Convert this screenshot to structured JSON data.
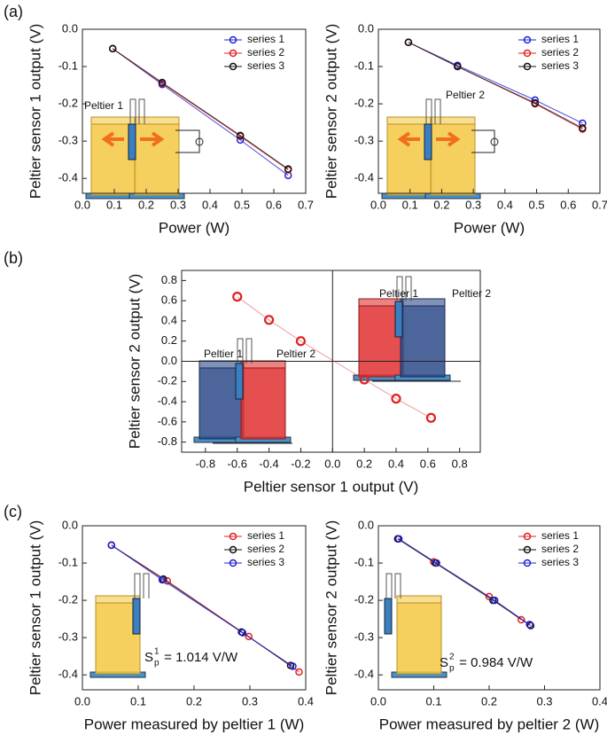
{
  "panel_labels": [
    "(a)",
    "(b)",
    "(c)"
  ],
  "chart_data": [
    {
      "type": "line",
      "xlabel": "Power (W)",
      "ylabel": "Peltier sensor 1 output (V)",
      "xlim": [
        0,
        0.7
      ],
      "xticks": [
        {
          "value": 0,
          "label": "0.0"
        },
        0.1,
        0.2,
        0.3,
        0.4,
        0.5,
        0.6,
        0.7
      ],
      "ylim": [
        -0.44,
        0
      ],
      "yticks": [
        {
          "value": 0,
          "label": "0.0"
        },
        -0.1,
        -0.2,
        -0.3,
        -0.4
      ],
      "legend": "upper right",
      "annotations": [
        "Peltier 1"
      ],
      "series": [
        {
          "name": "series 1",
          "color": "#1f1fd6",
          "x": [
            0.095,
            0.25,
            0.495,
            0.645
          ],
          "values": [
            -0.052,
            -0.148,
            -0.297,
            -0.392
          ]
        },
        {
          "name": "series 2",
          "color": "#e02020",
          "x": [
            0.095,
            0.25,
            0.495,
            0.645
          ],
          "values": [
            -0.052,
            -0.145,
            -0.287,
            -0.377
          ]
        },
        {
          "name": "series 3",
          "color": "#111111",
          "x": [
            0.095,
            0.25,
            0.495,
            0.645
          ],
          "values": [
            -0.052,
            -0.143,
            -0.285,
            -0.375
          ]
        }
      ]
    },
    {
      "type": "line",
      "xlabel": "Power (W)",
      "ylabel": "Peltier sensor 2 output (V)",
      "xlim": [
        0,
        0.7
      ],
      "xticks": [
        {
          "value": 0,
          "label": "0.0"
        },
        0.1,
        0.2,
        0.3,
        0.4,
        0.5,
        0.6,
        0.7
      ],
      "ylim": [
        -0.44,
        0
      ],
      "yticks": [
        {
          "value": 0,
          "label": "0.0"
        },
        -0.1,
        -0.2,
        -0.3,
        -0.4
      ],
      "legend": "upper right",
      "annotations": [
        "Peltier 2"
      ],
      "series": [
        {
          "name": "series 1",
          "color": "#1f1fd6",
          "x": [
            0.095,
            0.25,
            0.495,
            0.645
          ],
          "values": [
            -0.035,
            -0.097,
            -0.19,
            -0.252
          ]
        },
        {
          "name": "series 2",
          "color": "#e02020",
          "x": [
            0.095,
            0.25,
            0.495,
            0.645
          ],
          "values": [
            -0.035,
            -0.1,
            -0.2,
            -0.268
          ]
        },
        {
          "name": "series 3",
          "color": "#111111",
          "x": [
            0.095,
            0.25,
            0.495,
            0.645
          ],
          "values": [
            -0.035,
            -0.1,
            -0.198,
            -0.265
          ]
        }
      ]
    },
    {
      "type": "line",
      "xlabel": "Peltier sensor 1 output (V)",
      "ylabel": "Peltier sensor 2 output (V)",
      "xlim": [
        -0.95,
        0.93
      ],
      "xticks": [
        -0.8,
        -0.6,
        -0.4,
        -0.2,
        {
          "value": 0,
          "label": "0.0"
        },
        0.2,
        0.4,
        0.6,
        0.8
      ],
      "ylim": [
        -0.9,
        0.9
      ],
      "yticks": [
        -0.8,
        -0.6,
        -0.4,
        -0.2,
        {
          "value": 0,
          "label": "0.0"
        },
        0.2,
        0.4,
        0.6,
        0.8
      ],
      "zero_lines": true,
      "annotations": [
        "Peltier 1",
        "Peltier 2",
        "Peltier 1",
        "Peltier 2"
      ],
      "color": "#e02020",
      "x": [
        -0.6,
        -0.4,
        -0.2,
        0.2,
        0.4,
        0.62
      ],
      "values": [
        0.64,
        0.41,
        0.2,
        -0.18,
        -0.37,
        -0.56
      ]
    },
    {
      "type": "line",
      "xlabel": "Power measured by peltier 1 (W)",
      "ylabel": "Peltier sensor 1 output (V)",
      "xlim": [
        0,
        0.4
      ],
      "xticks": [
        {
          "value": 0,
          "label": "0.0"
        },
        0.1,
        0.2,
        0.3,
        0.4
      ],
      "ylim": [
        -0.44,
        0
      ],
      "yticks": [
        {
          "value": 0,
          "label": "0.0"
        },
        -0.1,
        -0.2,
        -0.3,
        -0.4
      ],
      "legend": "upper right",
      "annotation": {
        "symbol": "S",
        "superscript": "1",
        "subscript": "p",
        "text": " = 1.014 V/W"
      },
      "series": [
        {
          "name": "series 1",
          "color": "#e02020",
          "x": [
            0.052,
            0.152,
            0.298,
            0.388
          ],
          "values": [
            -0.052,
            -0.148,
            -0.297,
            -0.392
          ]
        },
        {
          "name": "series 2",
          "color": "#111111",
          "x": [
            0.052,
            0.145,
            0.285,
            0.373
          ],
          "values": [
            -0.052,
            -0.143,
            -0.285,
            -0.375
          ]
        },
        {
          "name": "series 3",
          "color": "#1f1fd6",
          "x": [
            0.052,
            0.143,
            0.287,
            0.377
          ],
          "values": [
            -0.052,
            -0.145,
            -0.287,
            -0.377
          ]
        }
      ]
    },
    {
      "type": "line",
      "xlabel": "Power measured by peltier 2 (W)",
      "ylabel": "Peltier sensor 2 output (V)",
      "xlim": [
        0,
        0.4
      ],
      "xticks": [
        {
          "value": 0,
          "label": "0.0"
        },
        0.1,
        0.2,
        0.3,
        0.4
      ],
      "ylim": [
        -0.44,
        0
      ],
      "yticks": [
        {
          "value": 0,
          "label": "0.0"
        },
        -0.1,
        -0.2,
        -0.3,
        -0.4
      ],
      "legend": "upper right",
      "annotation": {
        "symbol": "S",
        "superscript": "2",
        "subscript": "p",
        "text": " = 0.984 V/W"
      },
      "series": [
        {
          "name": "series 1",
          "color": "#e02020",
          "x": [
            0.035,
            0.1,
            0.2,
            0.258
          ],
          "values": [
            -0.035,
            -0.097,
            -0.19,
            -0.252
          ]
        },
        {
          "name": "series 2",
          "color": "#111111",
          "x": [
            0.035,
            0.103,
            0.207,
            0.275
          ],
          "values": [
            -0.035,
            -0.1,
            -0.2,
            -0.268
          ]
        },
        {
          "name": "series 3",
          "color": "#1f1fd6",
          "x": [
            0.037,
            0.105,
            0.21,
            0.273
          ],
          "values": [
            -0.035,
            -0.1,
            -0.2,
            -0.265
          ]
        }
      ]
    }
  ]
}
